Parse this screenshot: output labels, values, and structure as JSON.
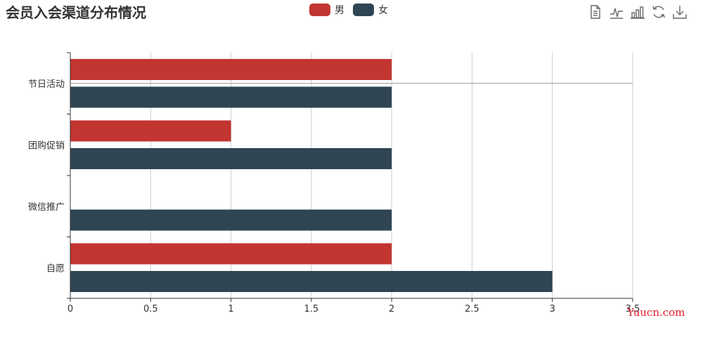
{
  "title": "会员入会渠道分布情况",
  "legend": [
    {
      "name": "男",
      "color": "#c23531"
    },
    {
      "name": "女",
      "color": "#2f4554"
    }
  ],
  "toolbox": [
    "data-view-icon",
    "line-chart-icon",
    "bar-chart-icon",
    "restore-icon",
    "save-image-icon"
  ],
  "watermark": "Yuucn.com",
  "chart_data": {
    "type": "bar",
    "orientation": "horizontal",
    "categories": [
      "节日活动",
      "团购促销",
      "微信推广",
      "自愿"
    ],
    "series": [
      {
        "name": "男",
        "color": "#c23531",
        "values": [
          2,
          1,
          0,
          2
        ]
      },
      {
        "name": "女",
        "color": "#2f4554",
        "values": [
          2,
          2,
          2,
          3
        ]
      }
    ],
    "x_ticks": [
      "0",
      "0.5",
      "1",
      "1.5",
      "2",
      "2.5",
      "3",
      "3.5"
    ],
    "xlim": [
      0,
      3.5
    ],
    "grid": true,
    "legend_position": "top-center"
  }
}
